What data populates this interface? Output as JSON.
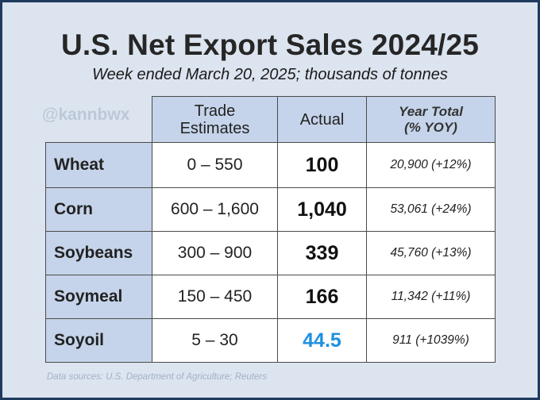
{
  "title": "U.S. Net Export Sales 2024/25",
  "subtitle": "Week ended March 20, 2025; thousands of tonnes",
  "watermark": "@kannbwx",
  "headers": {
    "trade_estimates_line1": "Trade",
    "trade_estimates_line2": "Estimates",
    "actual": "Actual",
    "year_total_line1": "Year Total",
    "year_total_line2": "(% YOY)"
  },
  "rows": [
    {
      "commodity": "Wheat",
      "estimates": "0 – 550",
      "actual": "100",
      "year_total": "20,900  (+12%)"
    },
    {
      "commodity": "Corn",
      "estimates": "600 – 1,600",
      "actual": "1,040",
      "year_total": "53,061  (+24%)"
    },
    {
      "commodity": "Soybeans",
      "estimates": "300 – 900",
      "actual": "339",
      "year_total": "45,760  (+13%)"
    },
    {
      "commodity": "Soymeal",
      "estimates": "150 – 450",
      "actual": "166",
      "year_total": "11,342  (+11%)"
    },
    {
      "commodity": "Soyoil",
      "estimates": "5 – 30",
      "actual": "44.5",
      "year_total": "911  (+1039%)"
    }
  ],
  "source": "Data sources: U.S. Department of Agriculture; Reuters",
  "colors": {
    "frame": "#1f3a5f",
    "background": "#dce4ef",
    "header_fill": "#c5d4ea",
    "highlight": "#1e90e0"
  }
}
